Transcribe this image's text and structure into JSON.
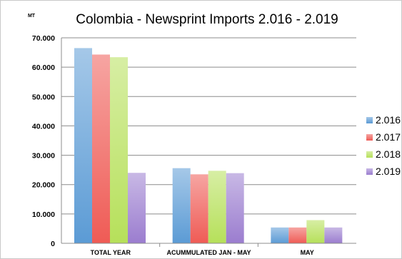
{
  "chart_data": {
    "type": "bar",
    "title": "Colombia - Newsprint Imports 2.016 - 2.019",
    "unit": "MT",
    "categories": [
      "TOTAL YEAR",
      "ACUMMULATED JAN - MAY",
      "MAY"
    ],
    "ylim": [
      0,
      70000
    ],
    "y_ticks": [
      0,
      10000,
      20000,
      30000,
      40000,
      50000,
      60000,
      70000
    ],
    "y_tick_labels": [
      "0",
      "10.000",
      "20.000",
      "30.000",
      "40.000",
      "50.000",
      "60.000",
      "70.000"
    ],
    "grid": true,
    "legend_position": "right",
    "series": [
      {
        "name": "2.016",
        "color": "#5b9bd5",
        "values": [
          66500,
          25600,
          5400
        ]
      },
      {
        "name": "2.017",
        "color": "#ef5b55",
        "values": [
          64300,
          23500,
          5400
        ]
      },
      {
        "name": "2.018",
        "color": "#b6e05a",
        "values": [
          63400,
          24700,
          7900
        ]
      },
      {
        "name": "2.019",
        "color": "#9b7dcf",
        "values": [
          24000,
          23900,
          5400
        ]
      }
    ]
  }
}
